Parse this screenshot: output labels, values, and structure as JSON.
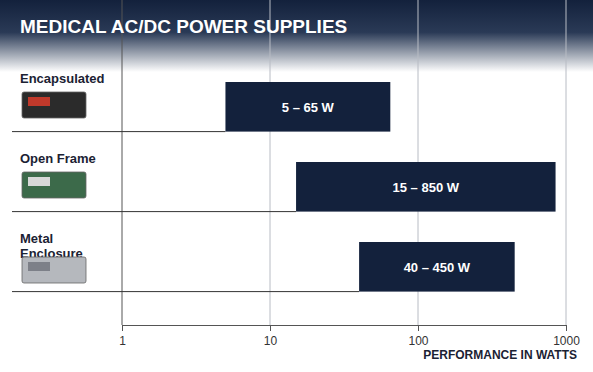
{
  "chart_data": {
    "type": "bar",
    "title": "MEDICAL AC/DC POWER SUPPLIES",
    "orientation": "horizontal",
    "categories": [
      "Encapsulated",
      "Open Frame",
      "Metal Enclosure"
    ],
    "values": [
      [
        5,
        65
      ],
      [
        15,
        850
      ],
      [
        40,
        450
      ]
    ],
    "value_labels": [
      "5 – 65 W",
      "15 – 850 W",
      "40 – 450 W"
    ],
    "data_labels": true,
    "color": "#13213c",
    "log": "x",
    "xlim": [
      1,
      1000
    ],
    "xticks": [
      1,
      10,
      100,
      1000
    ],
    "grid": true,
    "xlabel": "PERFORMANCE IN WATTS"
  }
}
